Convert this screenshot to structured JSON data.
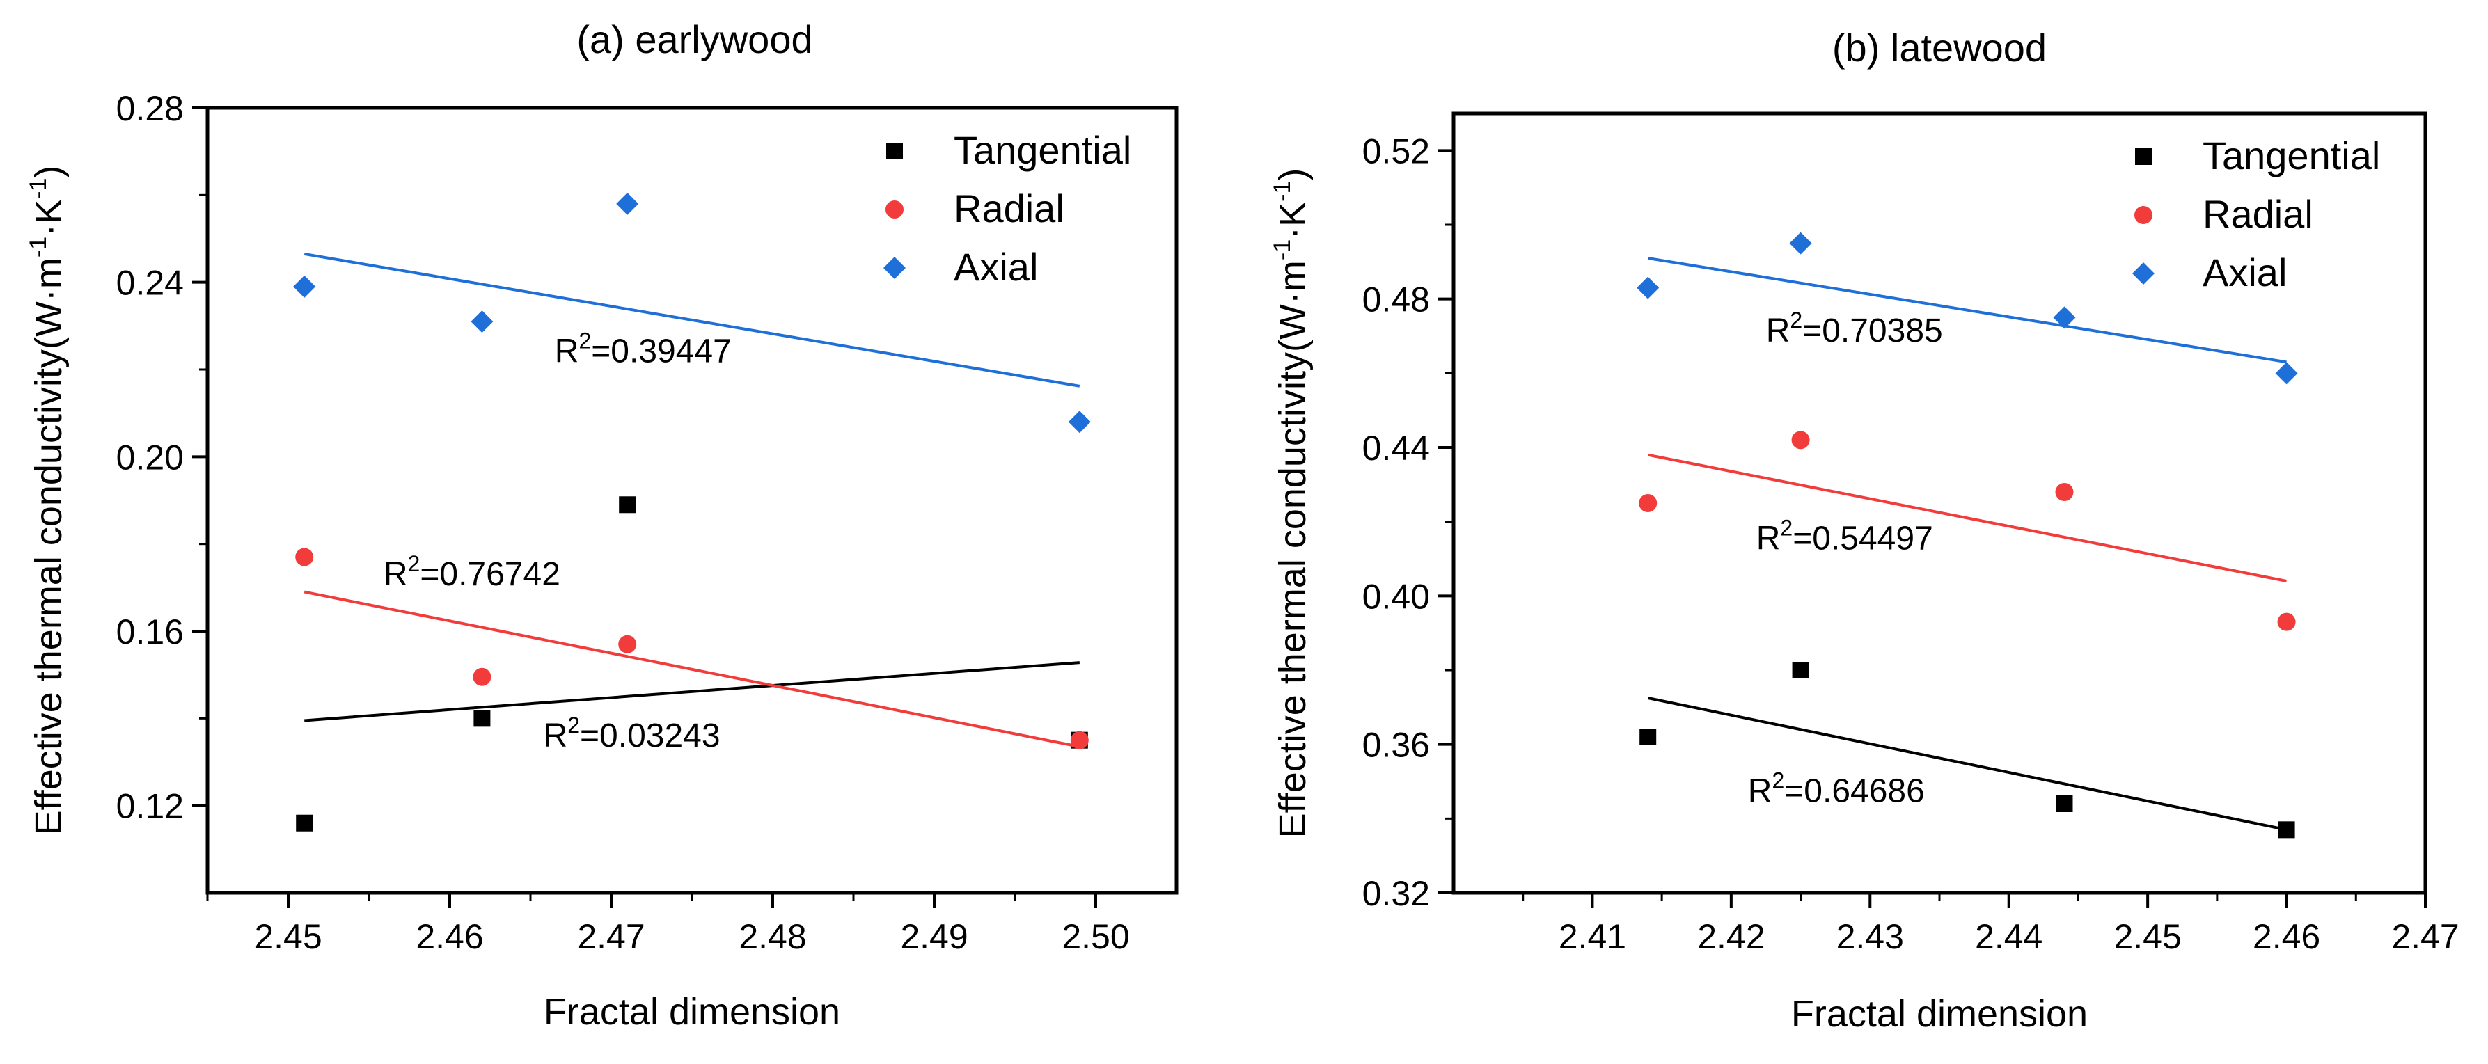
{
  "chart_data": [
    {
      "type": "scatter",
      "title": "(a) earlywood",
      "xlabel": "Fractal dimension",
      "ylabel": "Effective thermal conductivity(W·m",
      "ylabel_sup1": "-1",
      "ylabel_mid": "·K",
      "ylabel_sup2": "-1",
      "ylabel_end": ")",
      "xlim": [
        2.445,
        2.505
      ],
      "ylim": [
        0.1,
        0.28
      ],
      "xticks": [
        "2.45",
        "2.46",
        "2.47",
        "2.48",
        "2.49",
        "2.50"
      ],
      "yticks": [
        "0.12",
        "0.16",
        "0.20",
        "0.24",
        "0.28"
      ],
      "legend_position": "top-right",
      "series": [
        {
          "name": "Tangential",
          "color": "#000000",
          "marker": "square",
          "x": [
            2.451,
            2.462,
            2.471,
            2.499
          ],
          "y": [
            0.116,
            0.14,
            0.189,
            0.135
          ],
          "fit": {
            "x": [
              2.451,
              2.499
            ],
            "y": [
              0.1395,
              0.1528
            ]
          },
          "r2_prefix": "R",
          "r2_sup": "2",
          "r2_value": "=0.03243",
          "r2_anchor": {
            "x": 2.4658,
            "y": 0.1335
          }
        },
        {
          "name": "Radial",
          "color": "#f23c3c",
          "marker": "circle",
          "x": [
            2.451,
            2.462,
            2.471,
            2.499
          ],
          "y": [
            0.177,
            0.1495,
            0.157,
            0.135
          ],
          "fit": {
            "x": [
              2.451,
              2.499
            ],
            "y": [
              0.169,
              0.1335
            ]
          },
          "r2_prefix": "R",
          "r2_sup": "2",
          "r2_value": "=0.76742",
          "r2_anchor": {
            "x": 2.4559,
            "y": 0.1705
          }
        },
        {
          "name": "Axial",
          "color": "#1f6fd9",
          "marker": "diamond",
          "x": [
            2.451,
            2.462,
            2.471,
            2.499
          ],
          "y": [
            0.239,
            0.231,
            0.258,
            0.208
          ],
          "fit": {
            "x": [
              2.451,
              2.499
            ],
            "y": [
              0.2465,
              0.2162
            ]
          },
          "r2_prefix": "R",
          "r2_sup": "2",
          "r2_value": "=0.39447",
          "r2_anchor": {
            "x": 2.4665,
            "y": 0.2217
          }
        }
      ]
    },
    {
      "type": "scatter",
      "title": "(b) latewood",
      "xlabel": "Fractal dimension",
      "ylabel": "Effective thermal conductivity(W·m",
      "ylabel_sup1": "-1",
      "ylabel_mid": "·K",
      "ylabel_sup2": "-1",
      "ylabel_end": ")",
      "xlim": [
        2.4,
        2.47
      ],
      "ylim": [
        0.32,
        0.53
      ],
      "xticks": [
        "2.41",
        "2.42",
        "2.43",
        "2.44",
        "2.45",
        "2.46",
        "2.47"
      ],
      "yticks": [
        "0.32",
        "0.36",
        "0.40",
        "0.44",
        "0.48",
        "0.52"
      ],
      "legend_position": "top-right",
      "series": [
        {
          "name": "Tangential",
          "color": "#000000",
          "marker": "square",
          "x": [
            2.414,
            2.425,
            2.444,
            2.46
          ],
          "y": [
            0.362,
            0.38,
            0.344,
            0.337
          ],
          "fit": {
            "x": [
              2.414,
              2.46
            ],
            "y": [
              0.3725,
              0.337
            ]
          },
          "r2_prefix": "R",
          "r2_sup": "2",
          "r2_value": "=0.64686",
          "r2_anchor": {
            "x": 2.4212,
            "y": 0.3445
          }
        },
        {
          "name": "Radial",
          "color": "#f23c3c",
          "marker": "circle",
          "x": [
            2.414,
            2.425,
            2.444,
            2.46
          ],
          "y": [
            0.425,
            0.442,
            0.428,
            0.393
          ],
          "fit": {
            "x": [
              2.414,
              2.46
            ],
            "y": [
              0.438,
              0.404
            ]
          },
          "r2_prefix": "R",
          "r2_sup": "2",
          "r2_value": "=0.54497",
          "r2_anchor": {
            "x": 2.4218,
            "y": 0.4125
          }
        },
        {
          "name": "Axial",
          "color": "#1f6fd9",
          "marker": "diamond",
          "x": [
            2.414,
            2.425,
            2.444,
            2.46
          ],
          "y": [
            0.483,
            0.495,
            0.475,
            0.46
          ],
          "fit": {
            "x": [
              2.414,
              2.46
            ],
            "y": [
              0.491,
              0.463
            ]
          },
          "r2_prefix": "R",
          "r2_sup": "2",
          "r2_value": "=0.70385",
          "r2_anchor": {
            "x": 2.4225,
            "y": 0.4685
          }
        }
      ]
    }
  ]
}
